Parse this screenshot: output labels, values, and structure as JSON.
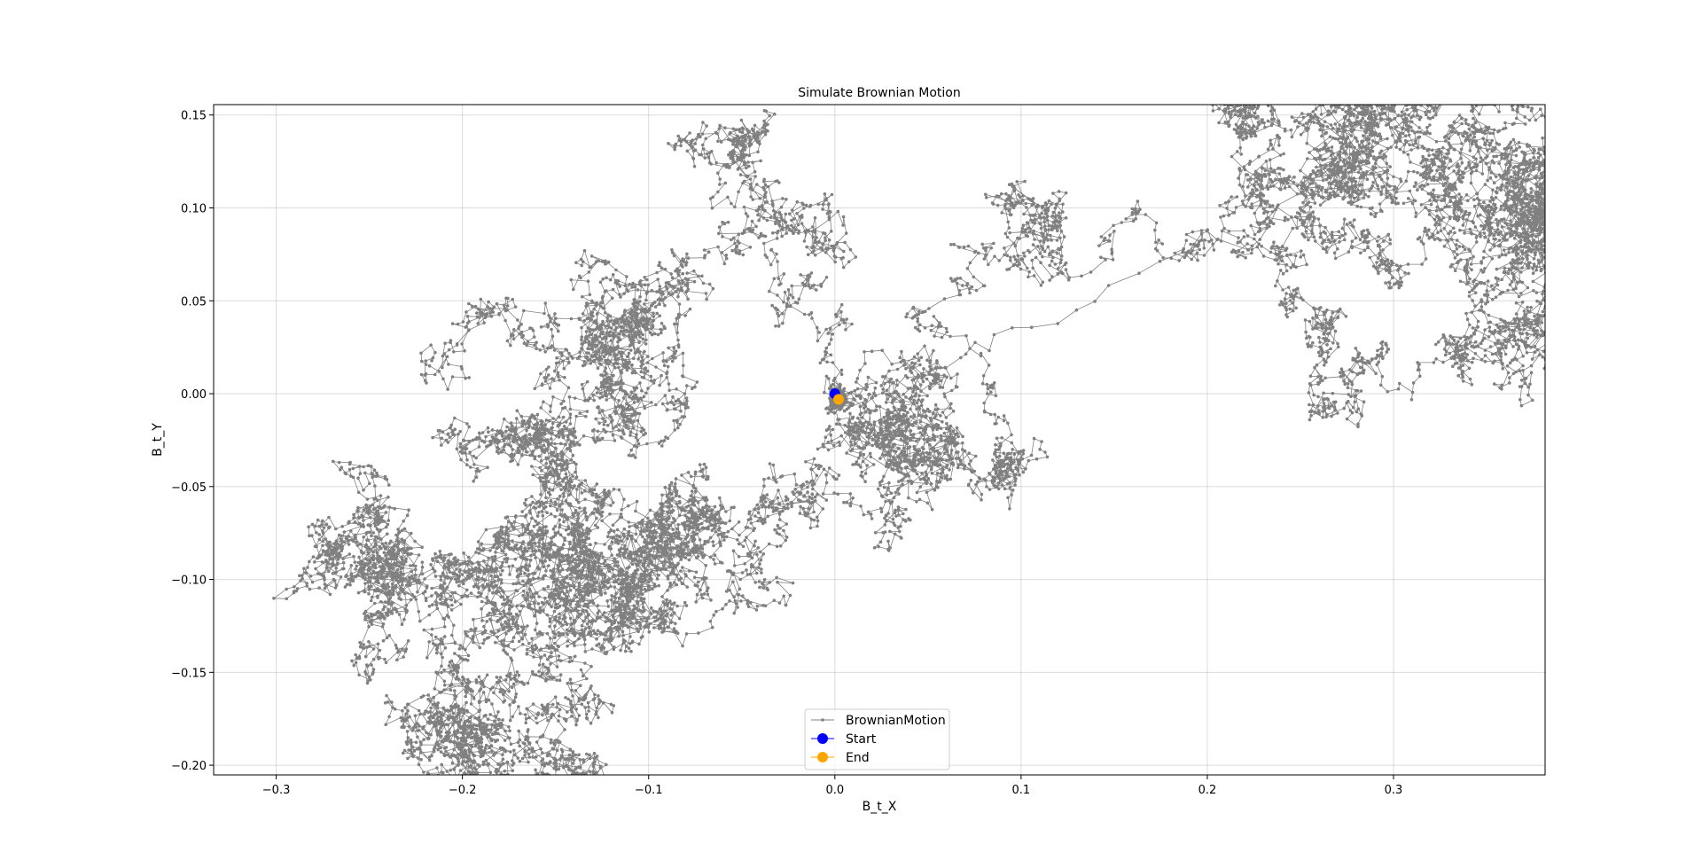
{
  "chart_data": {
    "type": "line",
    "title": "Simulate Brownian Motion",
    "xlabel": "B_t_X",
    "ylabel": "B_t_Y",
    "xlim": [
      -0.3336,
      0.3814
    ],
    "ylim": [
      -0.2052,
      0.1556
    ],
    "xticks": [
      -0.3,
      -0.2,
      -0.1,
      0.0,
      0.1,
      0.2,
      0.3
    ],
    "xtick_labels": [
      "−0.3",
      "−0.2",
      "−0.1",
      "0.0",
      "0.1",
      "0.2",
      "0.3"
    ],
    "yticks": [
      -0.2,
      -0.15,
      -0.1,
      -0.05,
      0.0,
      0.05,
      0.1,
      0.15
    ],
    "ytick_labels": [
      "−0.20",
      "−0.15",
      "−0.10",
      "−0.05",
      "0.00",
      "0.05",
      "0.10",
      "0.15"
    ],
    "grid": true,
    "legend_position": "lower center",
    "series": [
      {
        "name": "BrownianMotion",
        "color": "#808080",
        "marker": "small-dot",
        "random_walk": {
          "start": [
            0.0,
            0.0
          ],
          "end": [
            0.002,
            -0.003
          ],
          "n_steps": 12000,
          "step_std": 0.0035,
          "boundary": "reflect"
        }
      },
      {
        "name": "Start",
        "color": "#0000ff",
        "marker": "circle",
        "x": [
          0.0
        ],
        "y": [
          0.0
        ]
      },
      {
        "name": "End",
        "color": "#ffa500",
        "marker": "circle",
        "x": [
          0.002
        ],
        "y": [
          -0.003
        ]
      }
    ]
  }
}
